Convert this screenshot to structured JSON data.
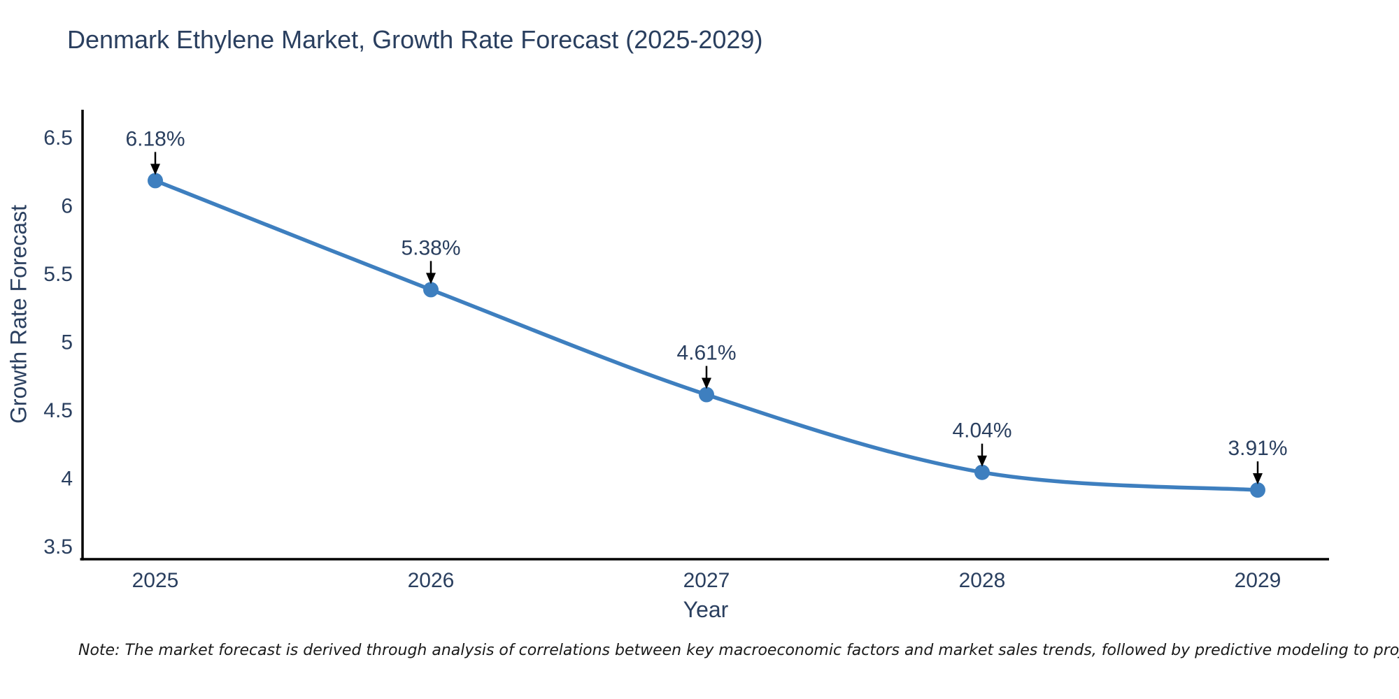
{
  "title": "Denmark Ethylene Market, Growth Rate Forecast (2025-2029)",
  "note": "Note: The market forecast is derived through analysis of correlations between key macroeconomic factors and market sales trends, followed by predictive modeling to project future sales",
  "chart_data": {
    "type": "line",
    "title": "Denmark Ethylene Market, Growth Rate Forecast (2025-2029)",
    "xlabel": "Year",
    "ylabel": "Growth Rate Forecast",
    "categories": [
      "2025",
      "2026",
      "2027",
      "2028",
      "2029"
    ],
    "values": [
      6.18,
      5.38,
      4.61,
      4.04,
      3.91
    ],
    "point_labels": [
      "6.18%",
      "5.38%",
      "4.61%",
      "4.04%",
      "3.91%"
    ],
    "ylim": [
      3.5,
      6.5
    ],
    "yticks": [
      3.5,
      4,
      4.5,
      5,
      5.5,
      6,
      6.5
    ],
    "ytick_labels": [
      "3.5",
      "4",
      "4.5",
      "5",
      "5.5",
      "6",
      "6.5"
    ],
    "grid": false,
    "legend": "none",
    "line_shape": "spline",
    "colors": {
      "line": "#3e7fbf",
      "marker": "#3e7fbf",
      "axis": "#000000",
      "tick_text": "#2a3f5f",
      "annotation_text": "#2a3f5f",
      "annotation_arrow": "#000000",
      "background": "#ffffff"
    }
  }
}
